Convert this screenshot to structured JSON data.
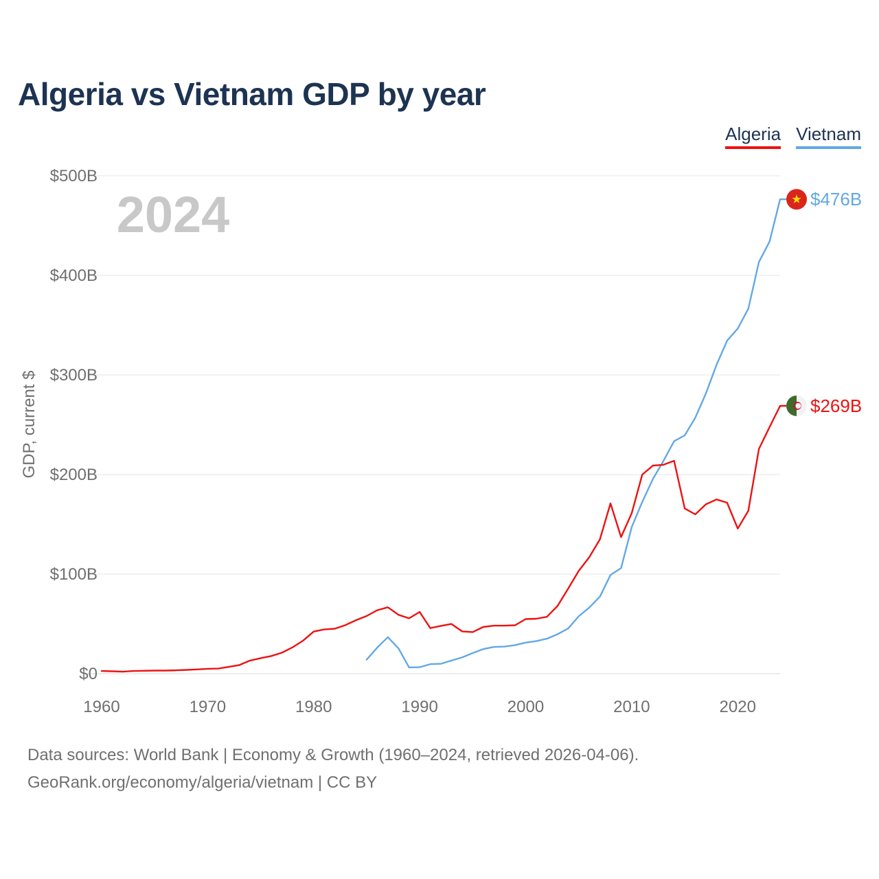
{
  "page": {
    "title": "Algeria vs Vietnam GDP by year",
    "year_watermark": "2024",
    "footer": {
      "sources": "Data sources: World Bank | Economy & Growth (1960–2024, retrieved 2026-04-06).",
      "credit": "GeoRank.org/economy/algeria/vietnam | CC BY"
    }
  },
  "legend": [
    {
      "label": "Algeria",
      "color": "#ee1111"
    },
    {
      "label": "Vietnam",
      "color": "#62a8e5"
    }
  ],
  "chart_data": {
    "type": "line",
    "title": "Algeria vs Vietnam GDP by year",
    "xlabel": "",
    "ylabel": "GDP, current $",
    "xlim": [
      1960,
      2024
    ],
    "ylim": [
      0,
      500
    ],
    "unit": "billion current US$",
    "x_ticks": [
      1960,
      1970,
      1980,
      1990,
      2000,
      2010,
      2020
    ],
    "x_tick_labels": [
      "1960",
      "1970",
      "1980",
      "1990",
      "2000",
      "2010",
      "2020"
    ],
    "y_ticks": [
      0,
      100,
      200,
      300,
      400,
      500
    ],
    "y_tick_labels": [
      "$0",
      "$100B",
      "$200B",
      "$300B",
      "$400B",
      "$500B"
    ],
    "grid": true,
    "legend_position": "top-right",
    "series": [
      {
        "name": "Algeria",
        "color": "#ee1111",
        "end_label": "$269B",
        "flag": "algeria-flag",
        "x": [
          1960,
          1961,
          1962,
          1963,
          1964,
          1965,
          1966,
          1967,
          1968,
          1969,
          1970,
          1971,
          1972,
          1973,
          1974,
          1975,
          1976,
          1977,
          1978,
          1979,
          1980,
          1981,
          1982,
          1983,
          1984,
          1985,
          1986,
          1987,
          1988,
          1989,
          1990,
          1991,
          1992,
          1993,
          1994,
          1995,
          1996,
          1997,
          1998,
          1999,
          2000,
          2001,
          2002,
          2003,
          2004,
          2005,
          2006,
          2007,
          2008,
          2009,
          2010,
          2011,
          2012,
          2013,
          2014,
          2015,
          2016,
          2017,
          2018,
          2019,
          2020,
          2021,
          2022,
          2023,
          2024
        ],
        "values": [
          2.7,
          2.4,
          2.0,
          2.7,
          2.9,
          3.1,
          3.1,
          3.4,
          3.8,
          4.3,
          4.9,
          5.1,
          6.8,
          8.7,
          13.2,
          15.6,
          17.7,
          21.0,
          26.4,
          33.2,
          42.3,
          44.4,
          45.2,
          48.8,
          53.7,
          57.9,
          63.7,
          66.7,
          59.1,
          55.6,
          62.0,
          45.7,
          48.0,
          49.9,
          42.5,
          41.8,
          46.9,
          48.2,
          48.2,
          48.6,
          54.8,
          55.2,
          57.1,
          67.9,
          85.3,
          103.2,
          117.0,
          134.9,
          171.0,
          137.2,
          161.2,
          200.0,
          209.0,
          209.8,
          213.8,
          165.9,
          160.0,
          170.1,
          175.0,
          171.7,
          145.7,
          163.5,
          225.6,
          247.6,
          269.0
        ]
      },
      {
        "name": "Vietnam",
        "color": "#62a8e5",
        "end_label": "$476B",
        "flag": "vietnam-flag",
        "x": [
          1985,
          1986,
          1987,
          1988,
          1989,
          1990,
          1991,
          1992,
          1993,
          1994,
          1995,
          1996,
          1997,
          1998,
          1999,
          2000,
          2001,
          2002,
          2003,
          2004,
          2005,
          2006,
          2007,
          2008,
          2009,
          2010,
          2011,
          2012,
          2013,
          2014,
          2015,
          2016,
          2017,
          2018,
          2019,
          2020,
          2021,
          2022,
          2023,
          2024
        ],
        "values": [
          14.1,
          26.3,
          36.7,
          25.4,
          6.3,
          6.5,
          9.6,
          9.9,
          13.2,
          16.3,
          20.7,
          24.7,
          26.8,
          27.2,
          28.7,
          31.2,
          32.7,
          35.1,
          39.6,
          45.4,
          57.6,
          66.4,
          77.4,
          99.1,
          106.0,
          147.2,
          172.6,
          195.6,
          213.7,
          233.5,
          239.3,
          257.1,
          281.4,
          310.1,
          334.4,
          346.6,
          366.5,
          413.4,
          433.9,
          476.4
        ]
      }
    ]
  }
}
